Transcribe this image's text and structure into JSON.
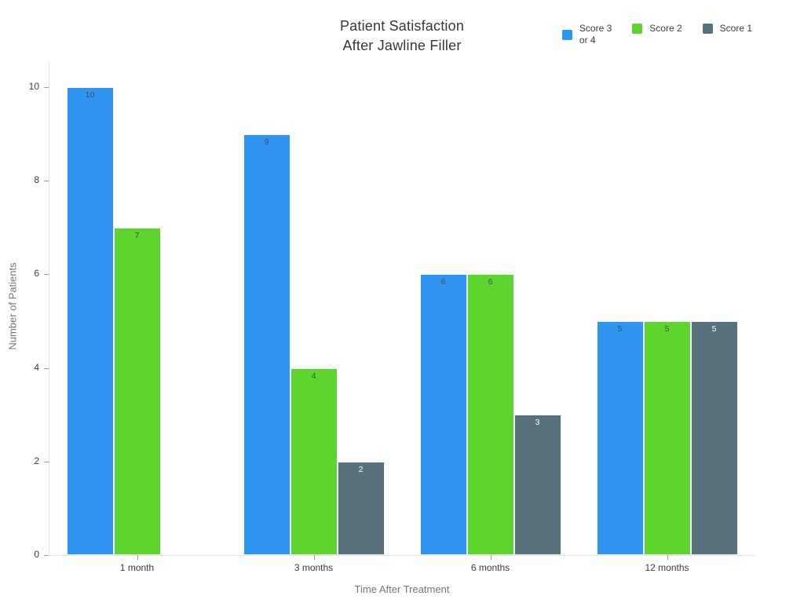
{
  "chart_data": {
    "type": "bar",
    "title": "Patient Satisfaction\nAfter Jawline Filler",
    "xlabel": "Time After Treatment",
    "ylabel": "Number of Patients",
    "categories": [
      "1 month",
      "3 months",
      "6 months",
      "12 months"
    ],
    "series": [
      {
        "name": "Score 3 or 4",
        "legend_label": "Score 3\nor 4",
        "color": "#3095f1",
        "value_label_color": "#3e4d59",
        "values": [
          10,
          9,
          6,
          5
        ]
      },
      {
        "name": "Score 2",
        "legend_label": "Score 2",
        "color": "#5ed42f",
        "value_label_color": "#3e4d59",
        "values": [
          7,
          4,
          6,
          5
        ]
      },
      {
        "name": "Score 1",
        "legend_label": "Score 1",
        "color": "#56707c",
        "value_label_color": "#ffffff",
        "values": [
          0,
          2,
          3,
          5
        ]
      }
    ],
    "ylim": [
      0,
      10
    ],
    "yticks": [
      0,
      2,
      4,
      6,
      8,
      10
    ],
    "grid": false,
    "legend_position": "top-right",
    "value_labels": "inside-top",
    "colors": {
      "axis_line": "#e3e3e3",
      "tick_mark": "#9b9b9b",
      "tick_label": "#3c3c3c",
      "axis_title": "#757575",
      "title": "#33383e",
      "background": "#ffffff"
    }
  }
}
